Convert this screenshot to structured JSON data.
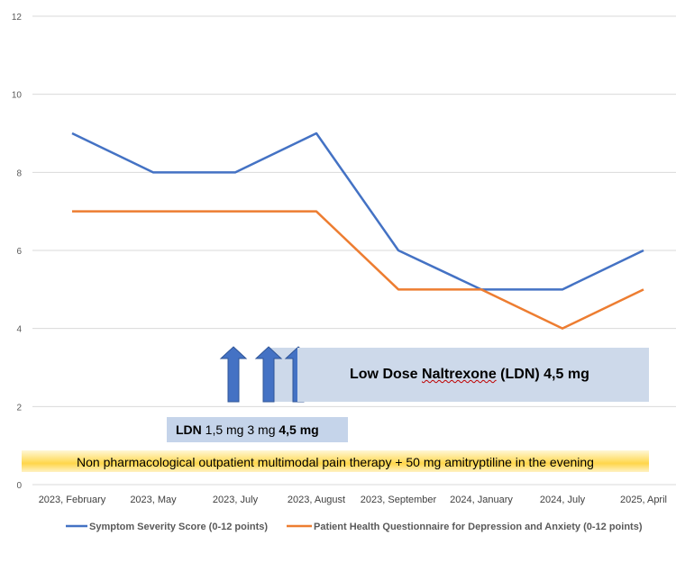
{
  "chart_data": {
    "type": "line",
    "categories": [
      "2023, February",
      "2023, May",
      "2023, July",
      "2023, August",
      "2023, September",
      "2024, January",
      "2024, July",
      "2025, April"
    ],
    "series": [
      {
        "name": "Symptom Severity Score (0-12 points)",
        "color": "#4472C4",
        "values": [
          9,
          8,
          8,
          9,
          6,
          5,
          5,
          6
        ]
      },
      {
        "name": "Patient Health Questionnaire for Depression and Anxiety (0-12 points)",
        "color": "#ED7D31",
        "values": [
          7,
          7,
          7,
          7,
          5,
          5,
          4,
          5
        ]
      }
    ],
    "ylim": [
      0,
      12
    ],
    "yticks": [
      0,
      2,
      4,
      6,
      8,
      10,
      12
    ],
    "grid": true,
    "legend": "bottom"
  },
  "annotations": {
    "ldn_panel": {
      "prefix": "Low Dose ",
      "underlined": "Naltrexone",
      "suffix": " (LDN)  4,5 mg"
    },
    "dose_box": {
      "ldn": "LDN",
      "dose1": " 1,5 mg  3 mg  ",
      "dose3": "4,5 mg"
    },
    "therapy": "Non pharmacological outpatient multimodal pain therapy + 50 mg amitryptiline in the evening",
    "arrows": [
      "1,5 mg",
      "3 mg",
      "4,5 mg"
    ]
  },
  "colors": {
    "grid": "#d9d9d9",
    "arrow": "#4472C4",
    "arrow_edge": "#2f5597",
    "panel": "#cdd9ea"
  }
}
